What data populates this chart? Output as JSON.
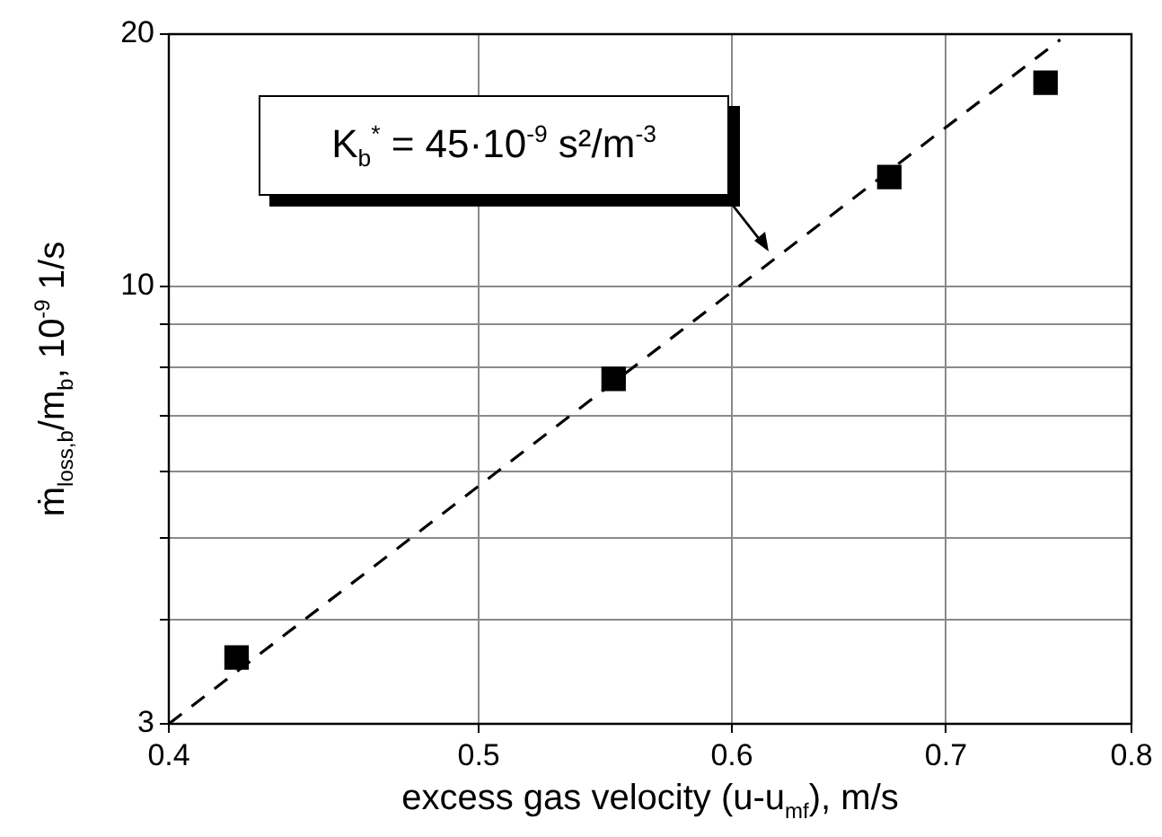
{
  "chart_data": {
    "type": "scatter",
    "xlabel": "excess gas velocity (u-u$_{mf}$), m/s",
    "ylabel": "ṁ$_{loss,b}$/m$_{b}$, 10$^{-9}$ 1/s",
    "log": "xy",
    "grid": true,
    "legend": false,
    "xlim": [
      0.4,
      0.8
    ],
    "xticks": [
      0.4,
      0.5,
      0.6,
      0.7,
      0.8
    ],
    "ylim": [
      3,
      20
    ],
    "yticks": [
      3,
      {
        "value": 4,
        "label": null
      },
      {
        "value": 5,
        "label": null
      },
      {
        "value": 6,
        "label": null
      },
      {
        "value": 7,
        "label": null
      },
      {
        "value": 8,
        "label": null
      },
      {
        "value": 9,
        "label": null
      },
      10,
      20
    ],
    "series": [
      {
        "type": "scatter",
        "color": "#000000",
        "marker": "square",
        "x": [
          0.42,
          0.551,
          0.672,
          0.752
        ],
        "values": [
          3.6,
          7.75,
          13.5,
          17.5
        ]
      },
      {
        "type": "line",
        "color": "#000000",
        "marker": "none",
        "line_style": "dashed",
        "x": [
          0.4,
          0.76
        ],
        "values": [
          3,
          19.7
        ]
      }
    ],
    "annotations": [
      "K$_{b}$$^{*}$ = 45·10$^{-9}$ s²/m$^{-3}$"
    ]
  }
}
